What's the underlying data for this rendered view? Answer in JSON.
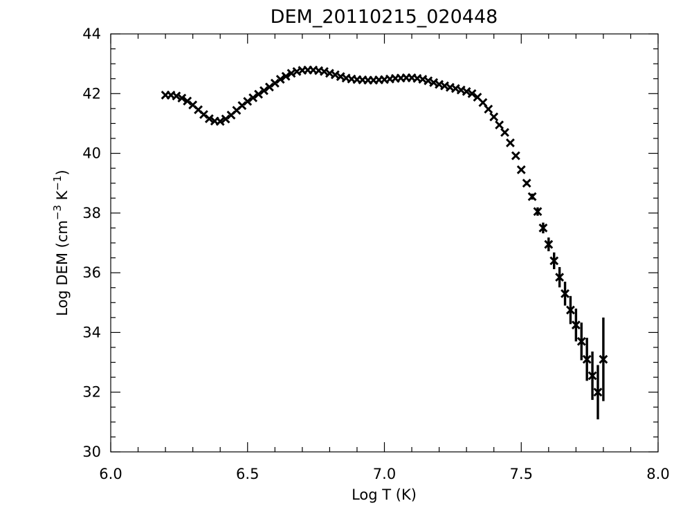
{
  "chart_data": {
    "type": "scatter",
    "title": "DEM_20110215_020448",
    "xlabel": "Log T (K)",
    "ylabel": "Log DEM (cm-3 K-1)",
    "ylabel_parts": {
      "lead": "Log DEM (cm",
      "exp1": "−3",
      "mid": " K",
      "exp2": "−1",
      "tail": ")"
    },
    "xlim": [
      6.0,
      8.0
    ],
    "ylim": [
      30,
      44
    ],
    "xticks": [
      6.0,
      6.5,
      7.0,
      7.5,
      8.0
    ],
    "xtick_labels": [
      "6.0",
      "6.5",
      "7.0",
      "7.5",
      "8.0"
    ],
    "yticks": [
      30,
      32,
      34,
      36,
      38,
      40,
      42,
      44
    ],
    "ytick_labels": [
      "30",
      "32",
      "34",
      "36",
      "38",
      "40",
      "42",
      "44"
    ],
    "x_minor_step": 0.1,
    "y_minor_step": 0.5,
    "grid": false,
    "marker": "x",
    "color": "#000000",
    "series": [
      {
        "x": [
          6.2,
          6.22,
          6.24,
          6.26,
          6.28,
          6.3,
          6.32,
          6.34,
          6.36,
          6.38,
          6.4,
          6.42,
          6.44,
          6.46,
          6.48,
          6.5,
          6.52,
          6.54,
          6.56,
          6.58,
          6.6,
          6.62,
          6.64,
          6.66,
          6.68,
          6.7,
          6.72,
          6.74,
          6.76,
          6.78,
          6.8,
          6.82,
          6.84,
          6.86,
          6.88,
          6.9,
          6.92,
          6.94,
          6.96,
          6.98,
          7.0,
          7.02,
          7.04,
          7.06,
          7.08,
          7.1,
          7.12,
          7.14,
          7.16,
          7.18,
          7.2,
          7.22,
          7.24,
          7.26,
          7.28,
          7.3,
          7.32,
          7.34,
          7.36,
          7.38,
          7.4,
          7.42,
          7.44,
          7.46,
          7.48,
          7.5,
          7.52,
          7.54,
          7.56,
          7.58,
          7.6,
          7.62,
          7.64,
          7.66,
          7.68,
          7.7,
          7.72,
          7.74,
          7.76,
          7.78,
          7.8
        ],
        "y": [
          41.95,
          41.95,
          41.92,
          41.85,
          41.75,
          41.62,
          41.46,
          41.3,
          41.16,
          41.08,
          41.07,
          41.15,
          41.28,
          41.44,
          41.6,
          41.74,
          41.86,
          41.98,
          42.1,
          42.22,
          42.35,
          42.48,
          42.58,
          42.68,
          42.74,
          42.78,
          42.79,
          42.79,
          42.77,
          42.74,
          42.68,
          42.63,
          42.57,
          42.52,
          42.49,
          42.47,
          42.46,
          42.45,
          42.45,
          42.46,
          42.47,
          42.49,
          42.51,
          42.52,
          42.53,
          42.53,
          42.51,
          42.48,
          42.43,
          42.37,
          42.31,
          42.26,
          42.21,
          42.17,
          42.12,
          42.07,
          42.0,
          41.88,
          41.7,
          41.48,
          41.22,
          40.95,
          40.7,
          40.35,
          39.92,
          39.45,
          39.0,
          38.55,
          38.05,
          37.5,
          36.95,
          36.4,
          35.85,
          35.3,
          34.75,
          34.25,
          33.7,
          33.1,
          32.55,
          32.0,
          33.1
        ],
        "err": [
          0,
          0,
          0,
          0,
          0,
          0,
          0,
          0,
          0,
          0,
          0,
          0,
          0,
          0,
          0,
          0,
          0,
          0,
          0,
          0,
          0,
          0,
          0,
          0,
          0,
          0,
          0,
          0,
          0,
          0,
          0,
          0,
          0,
          0,
          0,
          0,
          0,
          0,
          0,
          0,
          0,
          0,
          0,
          0,
          0,
          0,
          0,
          0,
          0,
          0,
          0,
          0,
          0,
          0,
          0,
          0,
          0,
          0,
          0,
          0,
          0,
          0,
          0,
          0,
          0,
          0.05,
          0.07,
          0.1,
          0.14,
          0.18,
          0.23,
          0.28,
          0.34,
          0.4,
          0.47,
          0.55,
          0.63,
          0.72,
          0.81,
          0.91,
          1.4
        ]
      }
    ]
  }
}
